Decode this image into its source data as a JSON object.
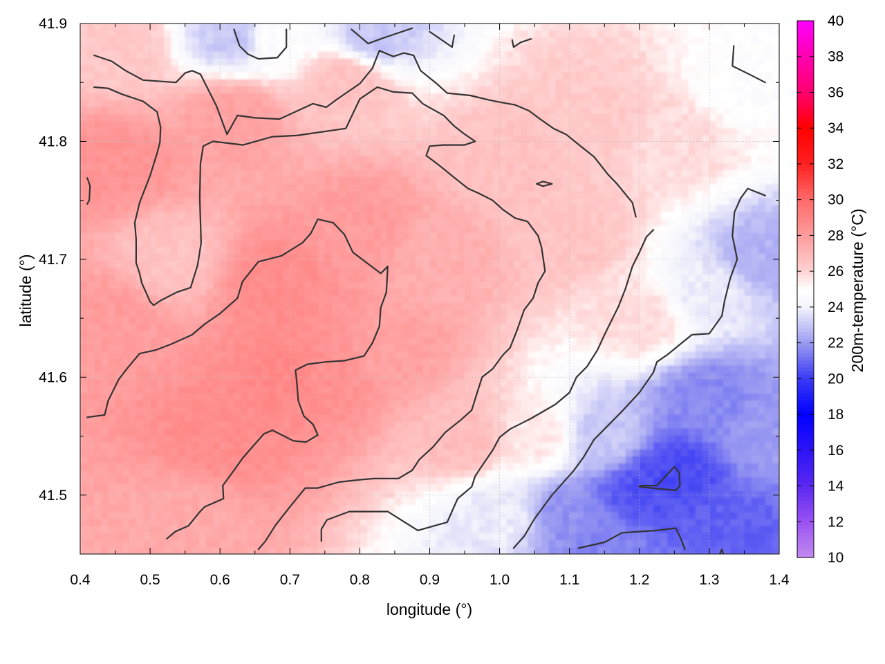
{
  "chart_data": {
    "type": "heatmap",
    "xlabel": "longitude (°)",
    "ylabel": "latitude (°)",
    "colorbar_label": "200m-temperature (°C)",
    "xlim": [
      0.4,
      1.4
    ],
    "ylim": [
      41.45,
      41.9
    ],
    "x_ticks": [
      "0.4",
      "0.5",
      "0.6",
      "0.7",
      "0.8",
      "0.9",
      "1.0",
      "1.1",
      "1.2",
      "1.3",
      "1.4"
    ],
    "y_ticks": [
      "41.5",
      "41.6",
      "41.7",
      "41.8",
      "41.9"
    ],
    "colorbar_ticks": [
      "10",
      "12",
      "14",
      "16",
      "18",
      "20",
      "22",
      "24",
      "26",
      "28",
      "30",
      "32",
      "34",
      "36",
      "38",
      "40"
    ],
    "colorbar_range": [
      10,
      40
    ],
    "grid": true,
    "colormap": [
      {
        "value": 10,
        "color": "#c28af0"
      },
      {
        "value": 12,
        "color": "#9a52f2"
      },
      {
        "value": 14,
        "color": "#5a28f0"
      },
      {
        "value": 18,
        "color": "#0000ff"
      },
      {
        "value": 20,
        "color": "#3a3af4"
      },
      {
        "value": 22,
        "color": "#9c9cf2"
      },
      {
        "value": 24,
        "color": "#f4f4fc"
      },
      {
        "value": 25,
        "color": "#ffffff"
      },
      {
        "value": 26,
        "color": "#ffd2d2"
      },
      {
        "value": 28,
        "color": "#ff9c9c"
      },
      {
        "value": 30,
        "color": "#ff6a6a"
      },
      {
        "value": 32,
        "color": "#ff2020"
      },
      {
        "value": 34,
        "color": "#ff0000"
      },
      {
        "value": 36,
        "color": "#ff0070"
      },
      {
        "value": 38,
        "color": "#ff00b0"
      },
      {
        "value": 40,
        "color": "#ff00ff"
      }
    ],
    "field_anchors": [
      {
        "x": 0.7,
        "y": 41.6,
        "value": 28.8
      },
      {
        "x": 0.6,
        "y": 41.55,
        "value": 28.6
      },
      {
        "x": 0.68,
        "y": 41.68,
        "value": 28.6
      },
      {
        "x": 0.75,
        "y": 41.6,
        "value": 28.4
      },
      {
        "x": 0.45,
        "y": 41.78,
        "value": 28.3
      },
      {
        "x": 0.44,
        "y": 41.65,
        "value": 28.0
      },
      {
        "x": 0.8,
        "y": 41.73,
        "value": 28.0
      },
      {
        "x": 0.62,
        "y": 41.82,
        "value": 27.8
      },
      {
        "x": 0.85,
        "y": 41.62,
        "value": 27.8
      },
      {
        "x": 0.55,
        "y": 41.48,
        "value": 27.5
      },
      {
        "x": 0.92,
        "y": 41.7,
        "value": 27.3
      },
      {
        "x": 0.95,
        "y": 41.55,
        "value": 26.8
      },
      {
        "x": 0.53,
        "y": 41.7,
        "value": 26.6
      },
      {
        "x": 0.78,
        "y": 41.85,
        "value": 26.6
      },
      {
        "x": 1.02,
        "y": 41.78,
        "value": 26.6
      },
      {
        "x": 1.1,
        "y": 41.72,
        "value": 26.5
      },
      {
        "x": 0.45,
        "y": 41.88,
        "value": 26.4
      },
      {
        "x": 1.15,
        "y": 41.82,
        "value": 26.3
      },
      {
        "x": 1.2,
        "y": 41.65,
        "value": 25.8
      },
      {
        "x": 1.25,
        "y": 41.8,
        "value": 25.8
      },
      {
        "x": 1.05,
        "y": 41.55,
        "value": 25.5
      },
      {
        "x": 0.68,
        "y": 41.89,
        "value": 24.8
      },
      {
        "x": 1.35,
        "y": 41.85,
        "value": 24.8
      },
      {
        "x": 1.0,
        "y": 41.48,
        "value": 23.8
      },
      {
        "x": 1.3,
        "y": 41.67,
        "value": 23.8
      },
      {
        "x": 0.62,
        "y": 41.89,
        "value": 23.0
      },
      {
        "x": 0.82,
        "y": 41.89,
        "value": 23.0
      },
      {
        "x": 1.38,
        "y": 41.7,
        "value": 22.5
      },
      {
        "x": 1.15,
        "y": 41.55,
        "value": 23.0
      },
      {
        "x": 1.3,
        "y": 41.58,
        "value": 21.6
      },
      {
        "x": 1.1,
        "y": 41.48,
        "value": 21.8
      },
      {
        "x": 1.38,
        "y": 41.55,
        "value": 22.0
      },
      {
        "x": 1.2,
        "y": 41.5,
        "value": 20.5
      },
      {
        "x": 1.25,
        "y": 41.52,
        "value": 20.3
      },
      {
        "x": 1.32,
        "y": 41.47,
        "value": 20.8
      },
      {
        "x": 1.15,
        "y": 41.46,
        "value": 21.5
      }
    ],
    "contours": [
      [
        [
          0.42,
          41.873
        ],
        [
          0.445,
          41.868
        ],
        [
          0.465,
          41.86
        ],
        [
          0.49,
          41.852
        ],
        [
          0.537,
          41.85
        ],
        [
          0.55,
          41.858
        ],
        [
          0.56,
          41.86
        ],
        [
          0.572,
          41.857
        ],
        [
          0.595,
          41.83
        ],
        [
          0.61,
          41.806
        ],
        [
          0.625,
          41.822
        ],
        [
          0.65,
          41.82
        ],
        [
          0.685,
          41.819
        ],
        [
          0.7,
          41.823
        ],
        [
          0.733,
          41.832
        ],
        [
          0.752,
          41.829
        ],
        [
          0.768,
          41.836
        ],
        [
          0.8,
          41.849
        ],
        [
          0.818,
          41.862
        ],
        [
          0.828,
          41.877
        ],
        [
          0.848,
          41.872
        ],
        [
          0.863,
          41.875
        ],
        [
          0.877,
          41.873
        ],
        [
          0.887,
          41.86
        ],
        [
          0.91,
          41.849
        ],
        [
          0.925,
          41.841
        ],
        [
          0.958,
          41.839
        ],
        [
          0.986,
          41.835
        ],
        [
          1.003,
          41.833
        ],
        [
          1.022,
          41.831
        ],
        [
          1.042,
          41.826
        ],
        [
          1.058,
          41.819
        ],
        [
          1.077,
          41.811
        ],
        [
          1.095,
          41.806
        ],
        [
          1.118,
          41.795
        ],
        [
          1.135,
          41.787
        ],
        [
          1.155,
          41.772
        ],
        [
          1.168,
          41.764
        ],
        [
          1.19,
          41.748
        ],
        [
          1.195,
          41.736
        ]
      ],
      [
        [
          0.42,
          41.846
        ],
        [
          0.44,
          41.845
        ],
        [
          0.46,
          41.84
        ],
        [
          0.49,
          41.834
        ],
        [
          0.51,
          41.825
        ],
        [
          0.515,
          41.812
        ],
        [
          0.514,
          41.799
        ],
        [
          0.51,
          41.79
        ],
        [
          0.5,
          41.771
        ],
        [
          0.485,
          41.748
        ],
        [
          0.478,
          41.731
        ],
        [
          0.48,
          41.717
        ],
        [
          0.48,
          41.697
        ],
        [
          0.485,
          41.688
        ],
        [
          0.488,
          41.68
        ],
        [
          0.5,
          41.664
        ],
        [
          0.505,
          41.661
        ],
        [
          0.515,
          41.665
        ],
        [
          0.538,
          41.672
        ],
        [
          0.558,
          41.676
        ],
        [
          0.568,
          41.695
        ],
        [
          0.573,
          41.714
        ],
        [
          0.571,
          41.752
        ],
        [
          0.572,
          41.781
        ],
        [
          0.576,
          41.796
        ],
        [
          0.59,
          41.8
        ],
        [
          0.633,
          41.797
        ],
        [
          0.675,
          41.804
        ],
        [
          0.71,
          41.805
        ],
        [
          0.78,
          41.811
        ],
        [
          0.8,
          41.836
        ],
        [
          0.825,
          41.846
        ],
        [
          0.848,
          41.842
        ],
        [
          0.875,
          41.841
        ],
        [
          0.89,
          41.832
        ],
        [
          0.92,
          41.822
        ],
        [
          0.935,
          41.813
        ],
        [
          0.948,
          41.807
        ],
        [
          0.965,
          41.8
        ],
        [
          0.95,
          41.797
        ],
        [
          0.92,
          41.797
        ],
        [
          0.9,
          41.796
        ],
        [
          0.895,
          41.788
        ],
        [
          0.915,
          41.779
        ],
        [
          0.94,
          41.767
        ],
        [
          0.955,
          41.76
        ],
        [
          0.97,
          41.756
        ],
        [
          0.99,
          41.75
        ],
        [
          1.005,
          41.742
        ],
        [
          1.022,
          41.735
        ],
        [
          1.04,
          41.732
        ],
        [
          1.055,
          41.72
        ],
        [
          1.06,
          41.71
        ],
        [
          1.065,
          41.69
        ],
        [
          1.055,
          41.68
        ],
        [
          1.048,
          41.667
        ],
        [
          1.035,
          41.657
        ],
        [
          1.025,
          41.64
        ],
        [
          1.015,
          41.625
        ],
        [
          1.005,
          41.619
        ],
        [
          0.99,
          41.607
        ],
        [
          0.975,
          41.6
        ],
        [
          0.968,
          41.587
        ],
        [
          0.96,
          41.572
        ],
        [
          0.945,
          41.564
        ],
        [
          0.922,
          41.553
        ],
        [
          0.905,
          41.541
        ],
        [
          0.885,
          41.53
        ],
        [
          0.875,
          41.521
        ],
        [
          0.855,
          41.514
        ],
        [
          0.82,
          41.514
        ],
        [
          0.8,
          41.513
        ],
        [
          0.77,
          41.511
        ],
        [
          0.74,
          41.506
        ],
        [
          0.722,
          41.506
        ],
        [
          0.7,
          41.49
        ],
        [
          0.68,
          41.475
        ],
        [
          0.665,
          41.461
        ],
        [
          0.655,
          41.454
        ]
      ],
      [
        [
          0.41,
          41.566
        ],
        [
          0.435,
          41.568
        ],
        [
          0.44,
          41.58
        ],
        [
          0.455,
          41.598
        ],
        [
          0.468,
          41.608
        ],
        [
          0.485,
          41.62
        ],
        [
          0.508,
          41.623
        ],
        [
          0.53,
          41.628
        ],
        [
          0.56,
          41.636
        ],
        [
          0.578,
          41.645
        ],
        [
          0.6,
          41.654
        ],
        [
          0.625,
          41.667
        ],
        [
          0.632,
          41.681
        ],
        [
          0.655,
          41.698
        ],
        [
          0.688,
          41.703
        ],
        [
          0.718,
          41.714
        ],
        [
          0.73,
          41.722
        ],
        [
          0.74,
          41.734
        ],
        [
          0.762,
          41.731
        ],
        [
          0.778,
          41.721
        ],
        [
          0.79,
          41.706
        ],
        [
          0.81,
          41.697
        ],
        [
          0.83,
          41.688
        ],
        [
          0.84,
          41.694
        ],
        [
          0.838,
          41.672
        ],
        [
          0.83,
          41.659
        ],
        [
          0.828,
          41.643
        ],
        [
          0.818,
          41.629
        ],
        [
          0.806,
          41.618
        ],
        [
          0.778,
          41.614
        ],
        [
          0.752,
          41.613
        ],
        [
          0.725,
          41.611
        ],
        [
          0.708,
          41.606
        ],
        [
          0.71,
          41.595
        ],
        [
          0.712,
          41.58
        ],
        [
          0.72,
          41.567
        ],
        [
          0.733,
          41.56
        ],
        [
          0.74,
          41.551
        ],
        [
          0.723,
          41.545
        ],
        [
          0.705,
          41.546
        ],
        [
          0.675,
          41.555
        ],
        [
          0.663,
          41.552
        ],
        [
          0.645,
          41.54
        ],
        [
          0.632,
          41.531
        ],
        [
          0.62,
          41.521
        ],
        [
          0.604,
          41.508
        ],
        [
          0.605,
          41.497
        ],
        [
          0.578,
          41.49
        ],
        [
          0.57,
          41.485
        ],
        [
          0.555,
          41.474
        ],
        [
          0.536,
          41.469
        ],
        [
          0.524,
          41.463
        ]
      ],
      [
        [
          0.745,
          41.461
        ],
        [
          0.745,
          41.471
        ],
        [
          0.753,
          41.479
        ],
        [
          0.785,
          41.486
        ],
        [
          0.84,
          41.486
        ],
        [
          0.883,
          41.47
        ],
        [
          0.925,
          41.477
        ],
        [
          0.94,
          41.497
        ],
        [
          0.96,
          41.507
        ],
        [
          0.965,
          41.516
        ],
        [
          0.975,
          41.525
        ],
        [
          0.99,
          41.538
        ],
        [
          1.0,
          41.549
        ],
        [
          1.015,
          41.556
        ],
        [
          1.045,
          41.565
        ],
        [
          1.08,
          41.577
        ],
        [
          1.1,
          41.587
        ],
        [
          1.11,
          41.6
        ],
        [
          1.125,
          41.609
        ],
        [
          1.14,
          41.623
        ],
        [
          1.15,
          41.636
        ],
        [
          1.16,
          41.648
        ],
        [
          1.17,
          41.66
        ],
        [
          1.18,
          41.675
        ],
        [
          1.19,
          41.694
        ],
        [
          1.2,
          41.706
        ],
        [
          1.21,
          41.719
        ],
        [
          1.22,
          41.725
        ]
      ],
      [
        [
          1.02,
          41.455
        ],
        [
          1.035,
          41.465
        ],
        [
          1.05,
          41.48
        ],
        [
          1.065,
          41.492
        ],
        [
          1.075,
          41.5
        ],
        [
          1.09,
          41.51
        ],
        [
          1.105,
          41.52
        ],
        [
          1.12,
          41.532
        ],
        [
          1.135,
          41.547
        ],
        [
          1.15,
          41.556
        ],
        [
          1.175,
          41.571
        ],
        [
          1.2,
          41.587
        ],
        [
          1.22,
          41.604
        ],
        [
          1.225,
          41.613
        ],
        [
          1.24,
          41.619
        ],
        [
          1.275,
          41.636
        ],
        [
          1.3,
          41.637
        ],
        [
          1.318,
          41.652
        ],
        [
          1.322,
          41.665
        ],
        [
          1.33,
          41.684
        ],
        [
          1.34,
          41.7
        ],
        [
          1.333,
          41.72
        ],
        [
          1.336,
          41.74
        ],
        [
          1.345,
          41.752
        ],
        [
          1.355,
          41.76
        ],
        [
          1.38,
          41.754
        ]
      ],
      [
        [
          1.2,
          41.508
        ],
        [
          1.225,
          41.508
        ],
        [
          1.25,
          41.524
        ],
        [
          1.257,
          41.519
        ],
        [
          1.258,
          41.508
        ],
        [
          1.252,
          41.504
        ],
        [
          1.2,
          41.507
        ]
      ],
      [
        [
          1.113,
          41.455
        ],
        [
          1.15,
          41.46
        ],
        [
          1.175,
          41.468
        ],
        [
          1.225,
          41.47
        ],
        [
          1.252,
          41.472
        ],
        [
          1.26,
          41.462
        ],
        [
          1.265,
          41.454
        ]
      ],
      [
        [
          0.62,
          41.895
        ],
        [
          0.628,
          41.881
        ],
        [
          0.64,
          41.874
        ],
        [
          0.655,
          41.87
        ],
        [
          0.682,
          41.871
        ],
        [
          0.695,
          41.88
        ],
        [
          0.695,
          41.895
        ]
      ],
      [
        [
          0.788,
          41.895
        ],
        [
          0.8,
          41.889
        ],
        [
          0.812,
          41.883
        ],
        [
          0.83,
          41.887
        ],
        [
          0.845,
          41.89
        ],
        [
          0.875,
          41.896
        ]
      ],
      [
        [
          0.9,
          41.893
        ],
        [
          0.92,
          41.885
        ],
        [
          0.932,
          41.88
        ],
        [
          0.935,
          41.89
        ]
      ],
      [
        [
          1.018,
          41.886
        ],
        [
          1.02,
          41.88
        ],
        [
          1.03,
          41.884
        ],
        [
          1.045,
          41.887
        ]
      ],
      [
        [
          1.335,
          41.881
        ],
        [
          1.333,
          41.864
        ],
        [
          1.357,
          41.857
        ],
        [
          1.38,
          41.85
        ]
      ],
      [
        [
          0.41,
          41.769
        ],
        [
          0.412,
          41.766
        ],
        [
          0.414,
          41.762
        ],
        [
          0.413,
          41.75
        ],
        [
          0.41,
          41.747
        ]
      ],
      [
        [
          1.053,
          41.764
        ],
        [
          1.062,
          41.766
        ],
        [
          1.075,
          41.764
        ],
        [
          1.062,
          41.762
        ],
        [
          1.053,
          41.764
        ]
      ],
      [
        [
          1.315,
          41.45
        ],
        [
          1.318,
          41.454
        ],
        [
          1.32,
          41.45
        ]
      ]
    ]
  }
}
